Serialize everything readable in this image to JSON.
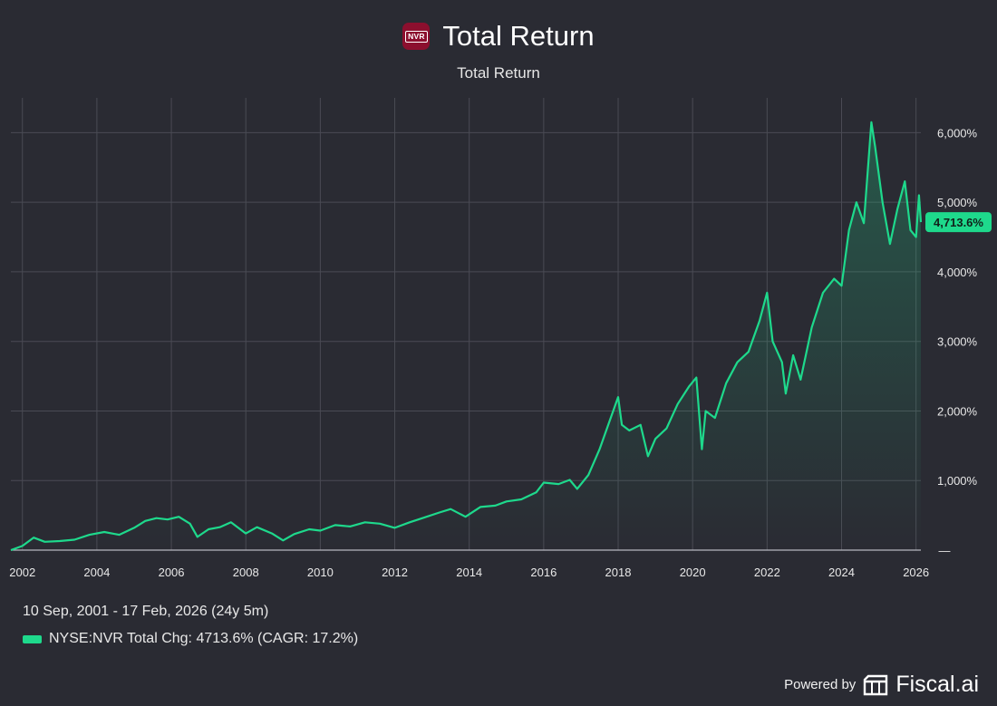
{
  "header": {
    "logo_text": "NVR",
    "title": "Total Return",
    "subtitle": "Total Return"
  },
  "footer": {
    "date_range": "10 Sep, 2001 - 17 Feb, 2026 (24y 5m)",
    "legend_label": "NYSE:NVR Total Chg: 4713.6% (CAGR: 17.2%)",
    "powered_by": "Powered by",
    "brand": "Fiscal.ai"
  },
  "colors": {
    "background": "#2a2b33",
    "series": "#1ed98c",
    "grid": "#4a4b54",
    "logo_bg": "#8c0f2e"
  },
  "chart_data": {
    "type": "area",
    "title": "Total Return",
    "series_name": "NYSE:NVR Total Chg",
    "unit": "%",
    "x_range": [
      2001.69,
      2026.13
    ],
    "ylim": [
      0,
      6500
    ],
    "x_ticks": [
      {
        "value": 2002,
        "label": "2002"
      },
      {
        "value": 2004,
        "label": "2004"
      },
      {
        "value": 2006,
        "label": "2006"
      },
      {
        "value": 2008,
        "label": "2008"
      },
      {
        "value": 2010,
        "label": "2010"
      },
      {
        "value": 2012,
        "label": "2012"
      },
      {
        "value": 2014,
        "label": "2014"
      },
      {
        "value": 2016,
        "label": "2016"
      },
      {
        "value": 2018,
        "label": "2018"
      },
      {
        "value": 2020,
        "label": "2020"
      },
      {
        "value": 2022,
        "label": "2022"
      },
      {
        "value": 2024,
        "label": "2024"
      },
      {
        "value": 2026,
        "label": "2026"
      }
    ],
    "y_ticks": [
      {
        "value": 0,
        "label": "—"
      },
      {
        "value": 1000,
        "label": "1,000%"
      },
      {
        "value": 2000,
        "label": "2,000%"
      },
      {
        "value": 3000,
        "label": "3,000%"
      },
      {
        "value": 4000,
        "label": "4,000%"
      },
      {
        "value": 5000,
        "label": "5,000%"
      },
      {
        "value": 6000,
        "label": "6,000%"
      }
    ],
    "last_value": 4713.6,
    "last_value_label": "4,713.6%",
    "points": [
      [
        2001.69,
        0
      ],
      [
        2002.0,
        60
      ],
      [
        2002.3,
        180
      ],
      [
        2002.6,
        120
      ],
      [
        2003.0,
        130
      ],
      [
        2003.4,
        150
      ],
      [
        2003.8,
        220
      ],
      [
        2004.2,
        260
      ],
      [
        2004.6,
        220
      ],
      [
        2005.0,
        320
      ],
      [
        2005.3,
        420
      ],
      [
        2005.6,
        460
      ],
      [
        2005.9,
        440
      ],
      [
        2006.2,
        480
      ],
      [
        2006.5,
        380
      ],
      [
        2006.7,
        190
      ],
      [
        2007.0,
        300
      ],
      [
        2007.3,
        330
      ],
      [
        2007.6,
        400
      ],
      [
        2008.0,
        240
      ],
      [
        2008.3,
        330
      ],
      [
        2008.7,
        240
      ],
      [
        2009.0,
        140
      ],
      [
        2009.3,
        230
      ],
      [
        2009.7,
        300
      ],
      [
        2010.0,
        280
      ],
      [
        2010.4,
        360
      ],
      [
        2010.8,
        340
      ],
      [
        2011.2,
        400
      ],
      [
        2011.6,
        380
      ],
      [
        2012.0,
        320
      ],
      [
        2012.4,
        400
      ],
      [
        2012.8,
        470
      ],
      [
        2013.2,
        540
      ],
      [
        2013.5,
        590
      ],
      [
        2013.9,
        480
      ],
      [
        2014.3,
        620
      ],
      [
        2014.7,
        640
      ],
      [
        2015.0,
        700
      ],
      [
        2015.4,
        730
      ],
      [
        2015.8,
        830
      ],
      [
        2016.0,
        970
      ],
      [
        2016.4,
        950
      ],
      [
        2016.7,
        1010
      ],
      [
        2016.9,
        880
      ],
      [
        2017.2,
        1080
      ],
      [
        2017.5,
        1450
      ],
      [
        2017.8,
        1900
      ],
      [
        2018.0,
        2200
      ],
      [
        2018.1,
        1800
      ],
      [
        2018.3,
        1720
      ],
      [
        2018.6,
        1800
      ],
      [
        2018.8,
        1350
      ],
      [
        2019.0,
        1600
      ],
      [
        2019.3,
        1750
      ],
      [
        2019.6,
        2100
      ],
      [
        2019.9,
        2350
      ],
      [
        2020.1,
        2480
      ],
      [
        2020.25,
        1450
      ],
      [
        2020.35,
        2000
      ],
      [
        2020.6,
        1900
      ],
      [
        2020.9,
        2400
      ],
      [
        2021.2,
        2700
      ],
      [
        2021.5,
        2850
      ],
      [
        2021.8,
        3300
      ],
      [
        2022.0,
        3700
      ],
      [
        2022.15,
        3000
      ],
      [
        2022.4,
        2700
      ],
      [
        2022.5,
        2250
      ],
      [
        2022.7,
        2800
      ],
      [
        2022.9,
        2450
      ],
      [
        2023.2,
        3200
      ],
      [
        2023.5,
        3700
      ],
      [
        2023.8,
        3900
      ],
      [
        2024.0,
        3800
      ],
      [
        2024.2,
        4600
      ],
      [
        2024.4,
        5000
      ],
      [
        2024.6,
        4700
      ],
      [
        2024.8,
        6150
      ],
      [
        2024.9,
        5800
      ],
      [
        2025.1,
        5000
      ],
      [
        2025.3,
        4400
      ],
      [
        2025.5,
        4900
      ],
      [
        2025.7,
        5300
      ],
      [
        2025.85,
        4600
      ],
      [
        2026.0,
        4500
      ],
      [
        2026.08,
        5100
      ],
      [
        2026.13,
        4713.6
      ]
    ]
  }
}
